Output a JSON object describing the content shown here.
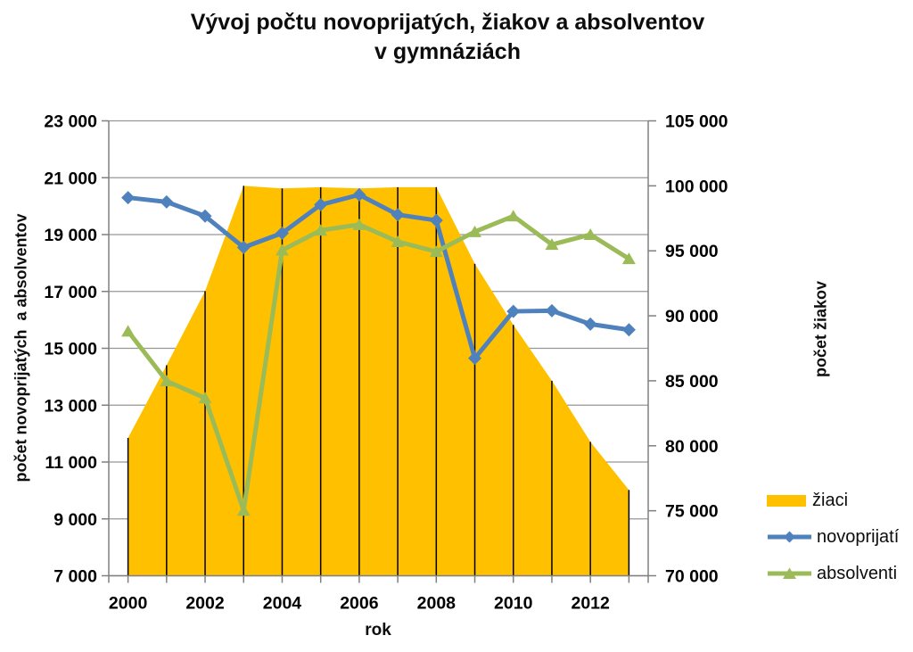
{
  "chart_data": {
    "type": "combo-area-line",
    "title": "Vývoj počtu novoprijatých, žiakov a absolventov v gymnáziách",
    "title_lines": [
      "Vývoj počtu novoprijatých, žiakov a absolventov",
      "v gymnáziách"
    ],
    "categories": [
      2000,
      2001,
      2002,
      2003,
      2004,
      2005,
      2006,
      2007,
      2008,
      2009,
      2010,
      2011,
      2012,
      2013
    ],
    "x_axis": {
      "title": "rok",
      "tick_labels": [
        "2000",
        "2002",
        "2004",
        "2006",
        "2008",
        "2010",
        "2012"
      ]
    },
    "left_axis": {
      "title": "počet novoprijatých  a absolventov",
      "min": 7000,
      "max": 23000,
      "step": 2000,
      "tick_labels": [
        "7 000",
        "9 000",
        "11 000",
        "13 000",
        "15 000",
        "17 000",
        "19 000",
        "21 000",
        "23 000"
      ]
    },
    "right_axis": {
      "title": "počet žiakov",
      "min": 70000,
      "max": 105000,
      "step": 5000,
      "tick_labels": [
        "70 000",
        "75 000",
        "80 000",
        "85 000",
        "90 000",
        "95 000",
        "100 000",
        "105 000"
      ]
    },
    "grid": true,
    "legend_position": "right",
    "series": [
      {
        "name": "žiaci",
        "type": "area",
        "axis": "right",
        "color": "#FFC000",
        "values": [
          80600,
          86200,
          91900,
          100000,
          99800,
          99900,
          99800,
          99900,
          99900,
          94000,
          89300,
          85000,
          80300,
          76600
        ]
      },
      {
        "name": "novoprijatí",
        "type": "line",
        "marker": "diamond",
        "axis": "left",
        "color": "#4F81BD",
        "values": [
          20300,
          20150,
          19650,
          18550,
          19050,
          20050,
          20400,
          19700,
          19500,
          14650,
          16300,
          16320,
          15850,
          15650
        ]
      },
      {
        "name": "absolventi",
        "type": "line",
        "marker": "triangle",
        "axis": "left",
        "color": "#9BBB59",
        "values": [
          15600,
          13850,
          13250,
          9300,
          18450,
          19150,
          19350,
          18750,
          18400,
          19100,
          19650,
          18650,
          19000,
          18150
        ]
      }
    ],
    "colors": {
      "gridline": "#969696",
      "axis_line": "#808080",
      "drop_line": "#000000",
      "text": "#000000"
    }
  }
}
